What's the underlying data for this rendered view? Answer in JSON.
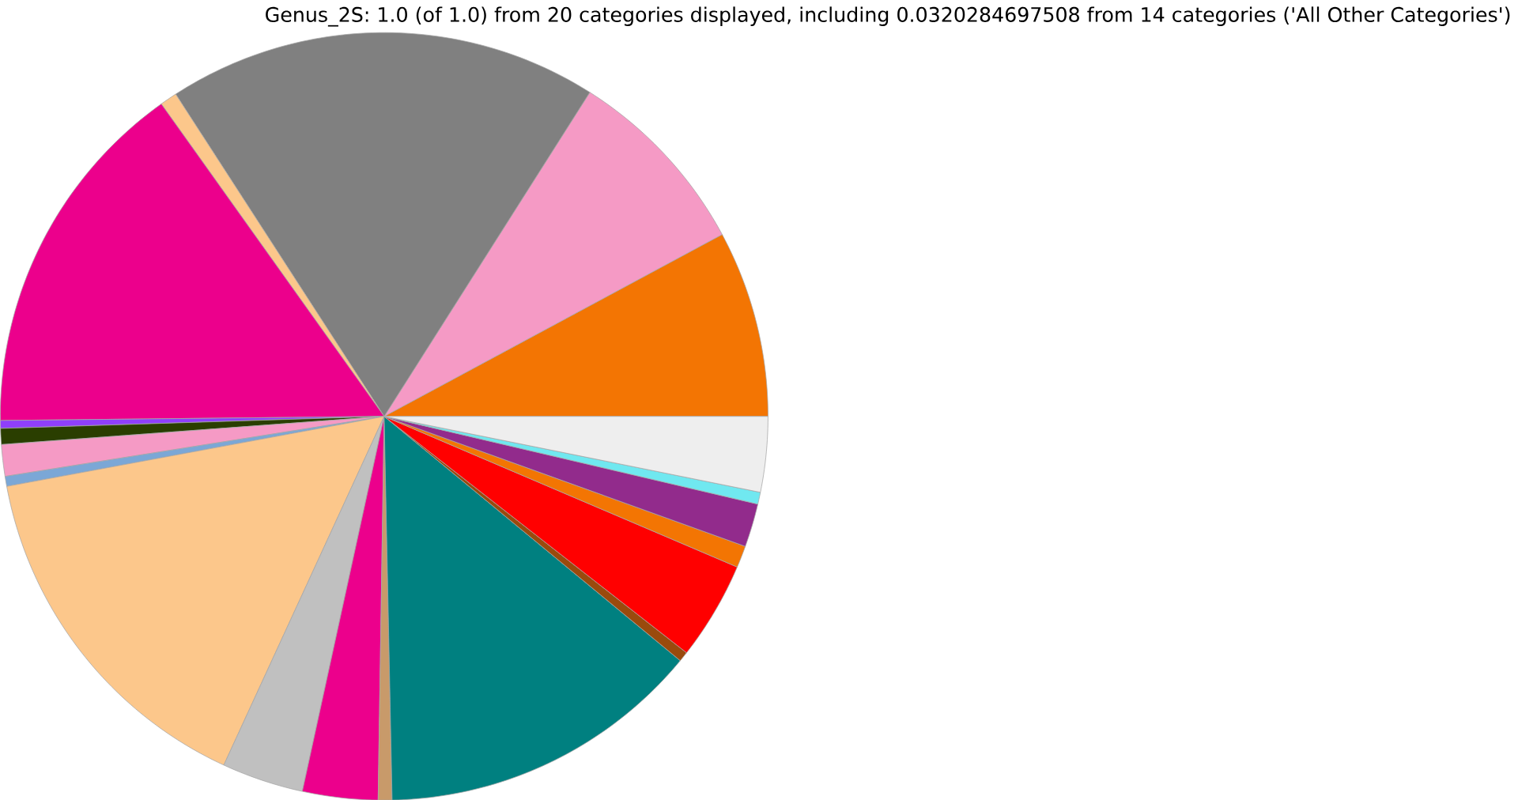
{
  "chart_data": {
    "type": "pie",
    "title": "Genus_2S: 1.0 (of 1.0) from 20 categories displayed, including 0.0320284697508 from 14 categories ('All Other Categories')",
    "categories": [
      null,
      null,
      null,
      null,
      null,
      null,
      null,
      null,
      null,
      null,
      null,
      null,
      null,
      null,
      null,
      null,
      null,
      null,
      null,
      null
    ],
    "values": [
      7.86,
      8.14,
      18.14,
      0.72,
      15.31,
      0.33,
      0.67,
      1.33,
      0.42,
      15.22,
      3.44,
      3.17,
      0.58,
      13.69,
      0.42,
      4.14,
      0.92,
      1.83,
      0.5,
      3.17
    ],
    "colors": [
      "#f37503",
      "#f59ac5",
      "#808080",
      "#fcc78b",
      "#ec008c",
      "#8f3ffb",
      "#2a3e00",
      "#f59ac5",
      "#7ba7d6",
      "#fcc78b",
      "#c0c0c0",
      "#ec008c",
      "#c89a6a",
      "#008080",
      "#9a4a0d",
      "#ff0000",
      "#f37503",
      "#922b8c",
      "#70e8f0",
      "#eeeeee"
    ]
  }
}
